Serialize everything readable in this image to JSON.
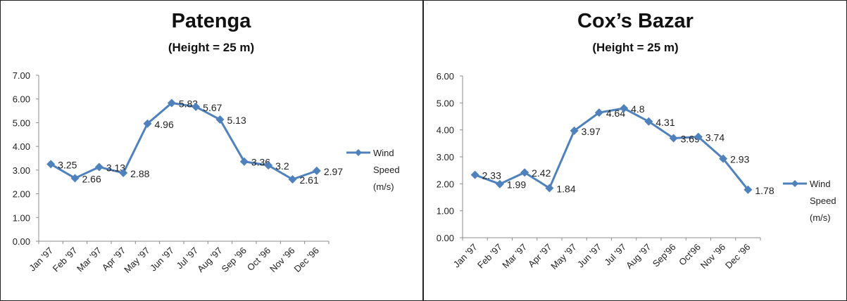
{
  "chart_data": [
    {
      "type": "line",
      "title": "Patenga",
      "subtitle": "(Height = 25 m)",
      "categories": [
        "Jan '97",
        "Feb '97",
        "Mar '97",
        "Apr '97",
        "May '97",
        "Jun '97",
        "Jul '97",
        "Aug '97",
        "Sep '96",
        "Oct '96",
        "Nov '96",
        "Dec '96"
      ],
      "series": [
        {
          "name": "Wind Speed (m/s)",
          "values": [
            3.25,
            2.66,
            3.13,
            2.88,
            4.96,
            5.83,
            5.67,
            5.13,
            3.36,
            3.2,
            2.61,
            2.97
          ]
        }
      ],
      "data_labels": [
        "3.25",
        "2.66",
        "3.13",
        "2.88",
        "4.96",
        "5.83",
        "5.67",
        "5.13",
        "3.36",
        "3.2",
        "2.61",
        "2.97"
      ],
      "y_ticks": [
        "0.00",
        "1.00",
        "2.00",
        "3.00",
        "4.00",
        "5.00",
        "6.00",
        "7.00"
      ],
      "ylim": [
        0,
        7
      ],
      "grid": false,
      "legend": {
        "position": "right",
        "lines": [
          "Wind",
          "Speed",
          "(m/s)"
        ]
      },
      "color": "#4f81bd"
    },
    {
      "type": "line",
      "title": "Cox’s Bazar",
      "subtitle": "(Height = 25 m)",
      "categories": [
        "Jan '97",
        "Feb '97",
        "Mar '97",
        "Apr '97",
        "May '97",
        "Jun '97",
        "Jul '97",
        "Aug '97",
        "Sep'96",
        "Oct'96",
        "Nov '96",
        "Dec '96"
      ],
      "series": [
        {
          "name": "Wind Speed (m/s)",
          "values": [
            2.33,
            1.99,
            2.42,
            1.84,
            3.97,
            4.64,
            4.8,
            4.31,
            3.69,
            3.74,
            2.93,
            1.78
          ]
        }
      ],
      "data_labels": [
        "2.33",
        "1.99",
        "2.42",
        "1.84",
        "3.97",
        "4.64",
        "4.8",
        "4.31",
        "3.69",
        "3.74",
        "2.93",
        "1.78"
      ],
      "y_ticks": [
        "0.00",
        "1.00",
        "2.00",
        "3.00",
        "4.00",
        "5.00",
        "6.00"
      ],
      "ylim": [
        0,
        6
      ],
      "grid": false,
      "legend": {
        "position": "right",
        "lines": [
          "Wind",
          "Speed",
          "(m/s)"
        ]
      },
      "color": "#4f81bd"
    }
  ]
}
